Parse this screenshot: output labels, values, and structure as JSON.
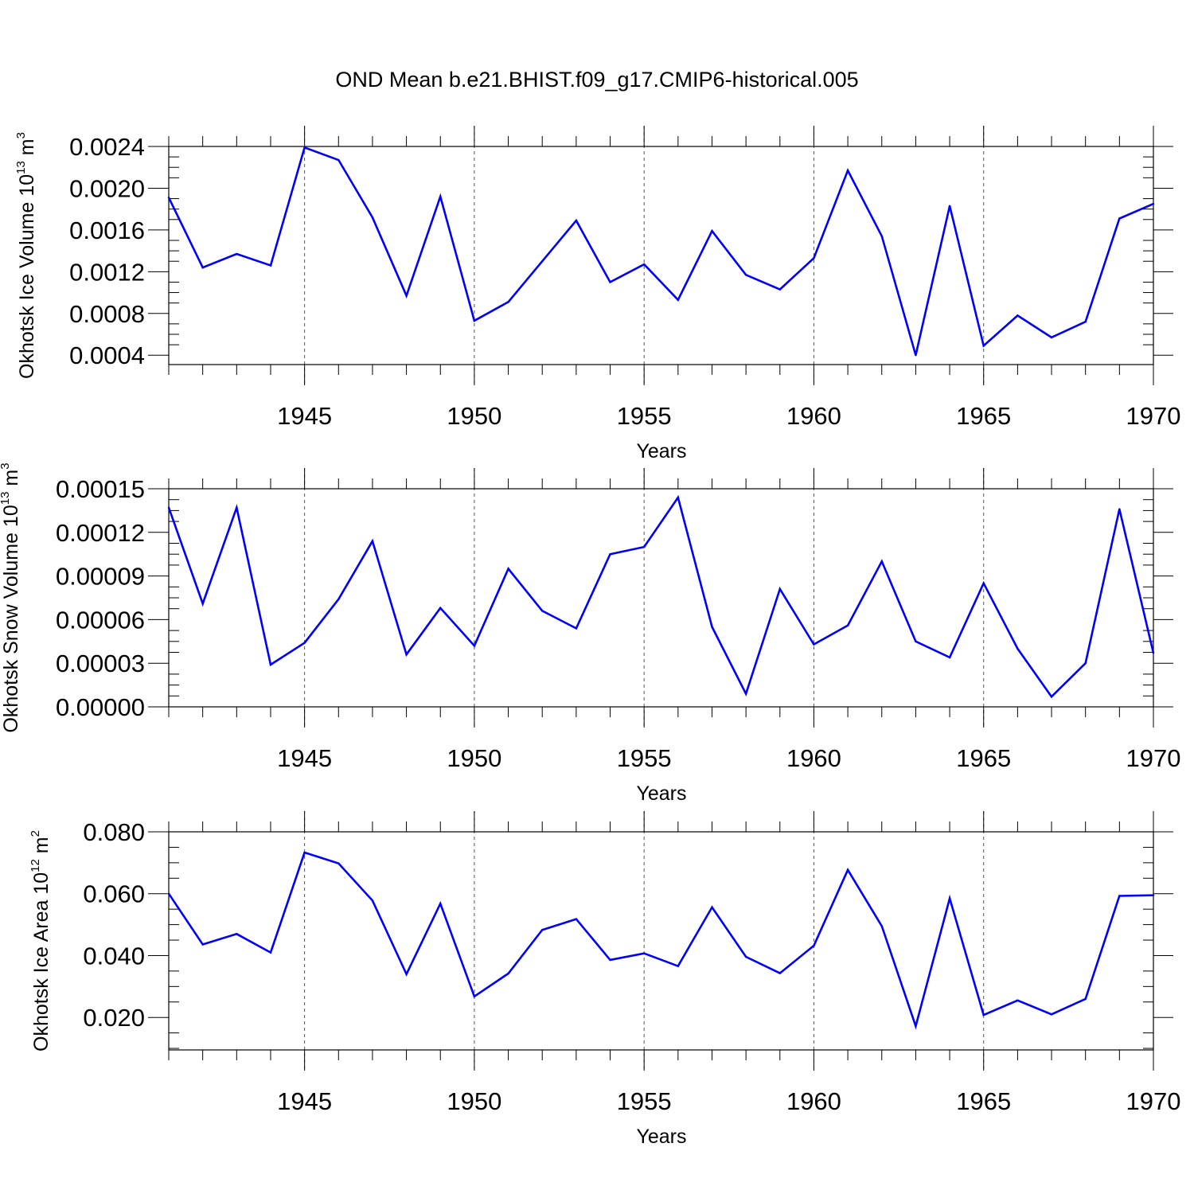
{
  "title": "OND Mean b.e21.BHIST.f09_g17.CMIP6-historical.005",
  "colors": {
    "line": "#0000ff",
    "axis": "#000000",
    "grid": "#555555"
  },
  "chart_data": [
    {
      "type": "line",
      "ylabel": {
        "text": "Okhotsk Ice Volume 10",
        "exp": "13",
        "unit": " m",
        "unit_exp": "3"
      },
      "xlabel": "Years",
      "xlim": [
        1941,
        1970
      ],
      "ylim": [
        0.00031,
        0.0024
      ],
      "yticks": [
        0.0004,
        0.0008,
        0.0012,
        0.0016,
        0.002,
        0.0024
      ],
      "yticklabels": [
        "0.0004",
        "0.0008",
        "0.0012",
        "0.0016",
        "0.0020",
        "0.0024"
      ],
      "xticks": [
        1945,
        1950,
        1955,
        1960,
        1965,
        1970
      ],
      "xticklabels": [
        "1945",
        "1950",
        "1955",
        "1960",
        "1965",
        "1970"
      ],
      "grid": "vertical dashed at major x ticks",
      "x": [
        1941,
        1942,
        1943,
        1944,
        1945,
        1946,
        1947,
        1948,
        1949,
        1950,
        1951,
        1952,
        1953,
        1954,
        1955,
        1956,
        1957,
        1958,
        1959,
        1960,
        1961,
        1962,
        1963,
        1964,
        1965,
        1966,
        1967,
        1968,
        1969,
        1970
      ],
      "y": [
        0.00191,
        0.00124,
        0.00137,
        0.00126,
        0.00239,
        0.00227,
        0.00172,
        0.00097,
        0.00192,
        0.00073,
        0.00091,
        0.0013,
        0.00169,
        0.0011,
        0.00127,
        0.00093,
        0.00159,
        0.00117,
        0.00103,
        0.00133,
        0.00217,
        0.00154,
        0.0004,
        0.00183,
        0.00049,
        0.00078,
        0.00057,
        0.00072,
        0.00171,
        0.00185
      ]
    },
    {
      "type": "line",
      "ylabel": {
        "text": "Okhotsk Snow Volume 10",
        "exp": "13",
        "unit": " m",
        "unit_exp": "3"
      },
      "xlabel": "Years",
      "xlim": [
        1941,
        1970
      ],
      "ylim": [
        0.0,
        0.00015
      ],
      "yticks": [
        0.0,
        3e-05,
        6e-05,
        9e-05,
        0.00012,
        0.00015
      ],
      "yticklabels": [
        "0.00000",
        "0.00003",
        "0.00006",
        "0.00009",
        "0.00012",
        "0.00015"
      ],
      "xticks": [
        1945,
        1950,
        1955,
        1960,
        1965,
        1970
      ],
      "xticklabels": [
        "1945",
        "1950",
        "1955",
        "1960",
        "1965",
        "1970"
      ],
      "grid": "vertical dashed at major x ticks",
      "x": [
        1941,
        1942,
        1943,
        1944,
        1945,
        1946,
        1947,
        1948,
        1949,
        1950,
        1951,
        1952,
        1953,
        1954,
        1955,
        1956,
        1957,
        1958,
        1959,
        1960,
        1961,
        1962,
        1963,
        1964,
        1965,
        1966,
        1967,
        1968,
        1969,
        1970
      ],
      "y": [
        0.000137,
        7.1e-05,
        0.000137,
        2.9e-05,
        4.4e-05,
        7.4e-05,
        0.000114,
        3.6e-05,
        6.8e-05,
        4.2e-05,
        9.5e-05,
        6.6e-05,
        5.4e-05,
        0.000105,
        0.00011,
        0.000144,
        5.5e-05,
        9e-06,
        8.1e-05,
        4.3e-05,
        5.6e-05,
        0.0001,
        4.5e-05,
        3.4e-05,
        8.5e-05,
        4e-05,
        7e-06,
        3e-05,
        0.000136,
        3.7e-05
      ]
    },
    {
      "type": "line",
      "ylabel": {
        "text": "Okhotsk Ice Area 10",
        "exp": "12",
        "unit": " m",
        "unit_exp": "2"
      },
      "xlabel": "Years",
      "xlim": [
        1941,
        1970
      ],
      "ylim": [
        0.0095,
        0.08
      ],
      "yticks": [
        0.02,
        0.04,
        0.06,
        0.08
      ],
      "yticklabels": [
        "0.020",
        "0.040",
        "0.060",
        "0.080"
      ],
      "xticks": [
        1945,
        1950,
        1955,
        1960,
        1965,
        1970
      ],
      "xticklabels": [
        "1945",
        "1950",
        "1955",
        "1960",
        "1965",
        "1970"
      ],
      "grid": "vertical dashed at major x ticks",
      "x": [
        1941,
        1942,
        1943,
        1944,
        1945,
        1946,
        1947,
        1948,
        1949,
        1950,
        1951,
        1952,
        1953,
        1954,
        1955,
        1956,
        1957,
        1958,
        1959,
        1960,
        1961,
        1962,
        1963,
        1964,
        1965,
        1966,
        1967,
        1968,
        1969,
        1970
      ],
      "y": [
        0.06,
        0.0436,
        0.047,
        0.041,
        0.0733,
        0.0698,
        0.0578,
        0.034,
        0.0568,
        0.0268,
        0.0342,
        0.0483,
        0.0518,
        0.0386,
        0.0407,
        0.0366,
        0.0556,
        0.0396,
        0.0343,
        0.0432,
        0.0677,
        0.0495,
        0.0172,
        0.0585,
        0.0208,
        0.0255,
        0.021,
        0.026,
        0.0593,
        0.0595
      ]
    }
  ]
}
